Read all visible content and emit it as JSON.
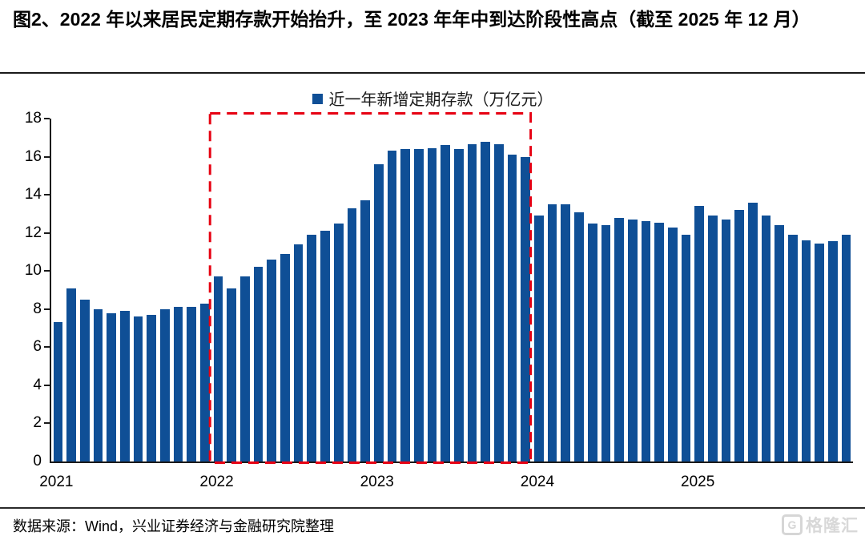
{
  "title": "图2、2022 年以来居民定期存款开始抬升，至 2023 年年中到达阶段性高点（截至 2025 年 12 月）",
  "source": "数据来源：Wind，兴业证券经济与金融研究院整理",
  "logo": {
    "icon": "G",
    "text": "格隆汇"
  },
  "colors": {
    "bar": "#0F4F96",
    "highlight_box": "#E60012",
    "axis": "#1A1A1A",
    "logo": "#D6D6D6"
  },
  "chart_data": {
    "type": "bar",
    "legend": "近一年新增定期存款（万亿元）",
    "legend_position": "top-center",
    "ylabel": "",
    "xlabel": "",
    "ylim": [
      0,
      18
    ],
    "yticks": [
      0,
      2,
      4,
      6,
      8,
      10,
      12,
      14,
      16,
      18
    ],
    "grid": false,
    "x": [
      "2021-01",
      "2021-02",
      "2021-03",
      "2021-04",
      "2021-05",
      "2021-06",
      "2021-07",
      "2021-08",
      "2021-09",
      "2021-10",
      "2021-11",
      "2021-12",
      "2022-01",
      "2022-02",
      "2022-03",
      "2022-04",
      "2022-05",
      "2022-06",
      "2022-07",
      "2022-08",
      "2022-09",
      "2022-10",
      "2022-11",
      "2022-12",
      "2023-01",
      "2023-02",
      "2023-03",
      "2023-04",
      "2023-05",
      "2023-06",
      "2023-07",
      "2023-08",
      "2023-09",
      "2023-10",
      "2023-11",
      "2023-12",
      "2024-01",
      "2024-02",
      "2024-03",
      "2024-04",
      "2024-05",
      "2024-06",
      "2024-07",
      "2024-08",
      "2024-09",
      "2024-10",
      "2024-11",
      "2024-12",
      "2025-01",
      "2025-02",
      "2025-03",
      "2025-04",
      "2025-05",
      "2025-06",
      "2025-07",
      "2025-08",
      "2025-09",
      "2025-10",
      "2025-11",
      "2025-12"
    ],
    "values": [
      7.3,
      9.1,
      8.5,
      8.0,
      7.8,
      7.9,
      7.6,
      7.7,
      8.0,
      8.1,
      8.1,
      8.3,
      9.7,
      9.1,
      9.7,
      10.2,
      10.6,
      10.9,
      11.4,
      11.9,
      12.1,
      12.5,
      13.3,
      13.7,
      15.6,
      16.3,
      16.4,
      16.4,
      16.45,
      16.6,
      16.4,
      16.65,
      16.8,
      16.65,
      16.1,
      16.0,
      12.9,
      13.5,
      13.5,
      13.1,
      12.5,
      12.4,
      12.8,
      12.7,
      12.6,
      12.55,
      12.3,
      11.9,
      13.4,
      12.9,
      12.7,
      13.2,
      13.6,
      12.9,
      12.4,
      11.9,
      11.6,
      11.45,
      11.55,
      11.9
    ],
    "xticks": [
      {
        "label": "2021",
        "index": 0
      },
      {
        "label": "2022",
        "index": 12
      },
      {
        "label": "2023",
        "index": 24
      },
      {
        "label": "2024",
        "index": 36
      },
      {
        "label": "2025",
        "index": 48
      }
    ],
    "highlight_box": {
      "from": "2022-01",
      "to": "2023-12",
      "from_index": 12,
      "to_index": 35,
      "style": "red-dashed"
    }
  }
}
